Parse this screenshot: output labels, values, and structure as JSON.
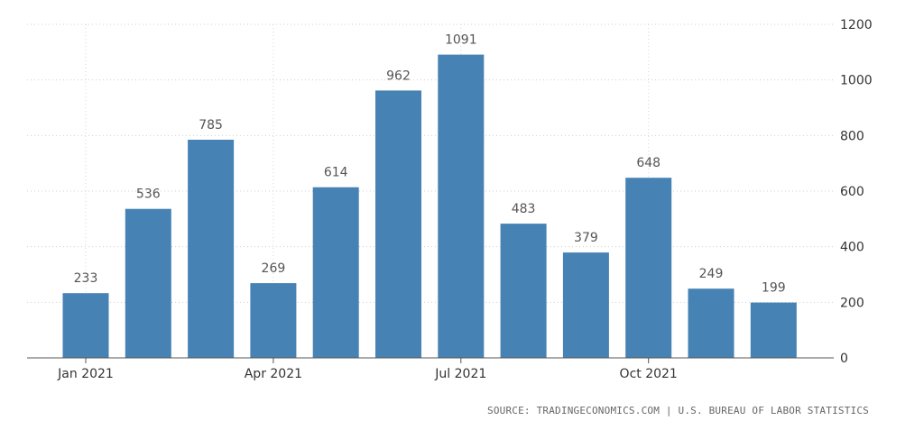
{
  "chart_data": {
    "type": "bar",
    "title": "",
    "xlabel": "",
    "ylabel": "",
    "categories": [
      "Jan 2021",
      "Feb 2021",
      "Mar 2021",
      "Apr 2021",
      "May 2021",
      "Jun 2021",
      "Jul 2021",
      "Aug 2021",
      "Sep 2021",
      "Oct 2021",
      "Nov 2021",
      "Dec 2021"
    ],
    "values": [
      233,
      536,
      785,
      269,
      614,
      962,
      1091,
      483,
      379,
      648,
      249,
      199
    ],
    "x_tick_labels": [
      {
        "category": "Jan 2021",
        "label": "Jan 2021"
      },
      {
        "category": "Apr 2021",
        "label": "Apr 2021"
      },
      {
        "category": "Jul 2021",
        "label": "Jul 2021"
      },
      {
        "category": "Oct 2021",
        "label": "Oct 2021"
      }
    ],
    "y_ticks": [
      0,
      200,
      400,
      600,
      800,
      1000,
      1200
    ],
    "ylim": [
      0,
      1200
    ],
    "yaxis_side": "right",
    "grid": true,
    "data_labels": true,
    "bar_color": "#4682b4"
  },
  "source": {
    "text": "SOURCE: TRADINGECONOMICS.COM | U.S. BUREAU OF LABOR STATISTICS"
  }
}
